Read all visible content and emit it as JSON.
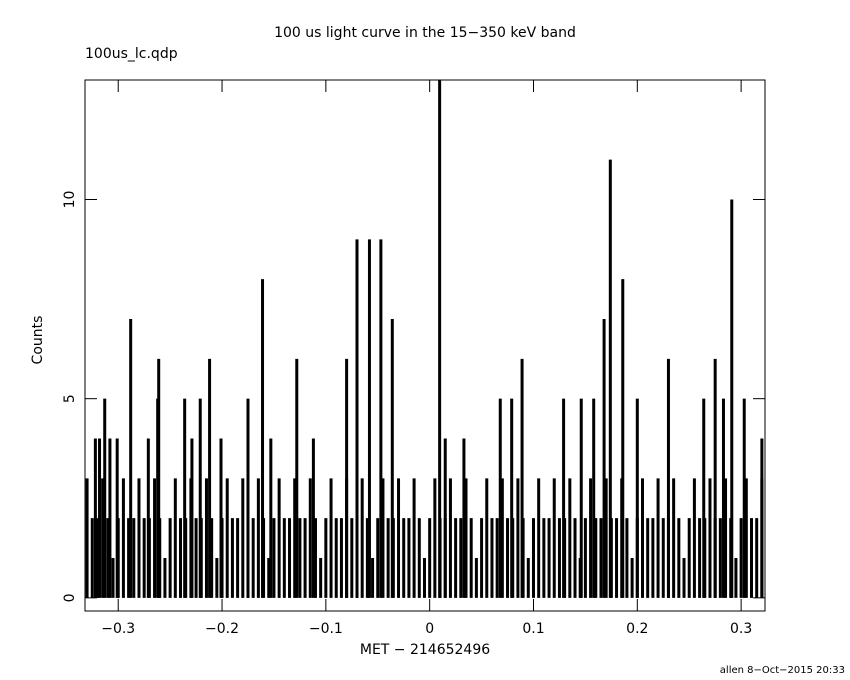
{
  "chart_data": {
    "type": "spikes",
    "title": "100 us light curve in the 15−350 keV band",
    "subtitle": "100us_lc.qdp",
    "xlabel": "MET − 214652496",
    "ylabel": "Counts",
    "footer": "allen  8−Oct−2015 20:33",
    "color": "#000000",
    "x": [
      -0.33,
      -0.325,
      -0.32,
      -0.315,
      -0.31,
      -0.305,
      -0.3,
      -0.295,
      -0.29,
      -0.285,
      -0.28,
      -0.275,
      -0.27,
      -0.265,
      -0.26,
      -0.255,
      -0.25,
      -0.245,
      -0.24,
      -0.235,
      -0.23,
      -0.225,
      -0.22,
      -0.215,
      -0.21,
      -0.205,
      -0.2,
      -0.195,
      -0.19,
      -0.185,
      -0.18,
      -0.175,
      -0.17,
      -0.165,
      -0.16,
      -0.155,
      -0.15,
      -0.145,
      -0.14,
      -0.135,
      -0.13,
      -0.125,
      -0.12,
      -0.115,
      -0.11,
      -0.105,
      -0.1,
      -0.095,
      -0.09,
      -0.085,
      -0.08,
      -0.075,
      -0.07,
      -0.065,
      -0.06,
      -0.055,
      -0.05,
      -0.045,
      -0.04,
      -0.035,
      -0.03,
      -0.025,
      -0.02,
      -0.015,
      -0.01,
      -0.005,
      0,
      0.005,
      0.01,
      0.015,
      0.02,
      0.025,
      0.03,
      0.035,
      0.04,
      0.045,
      0.05,
      0.055,
      0.06,
      0.065,
      0.07,
      0.075,
      0.08,
      0.085,
      0.09,
      0.095,
      0.1,
      0.105,
      0.11,
      0.115,
      0.12,
      0.125,
      0.13,
      0.135,
      0.14,
      0.145,
      0.15,
      0.155,
      0.16,
      0.165,
      0.17,
      0.175,
      0.18,
      0.185,
      0.19,
      0.195,
      0.2,
      0.205,
      0.21,
      0.215,
      0.22,
      0.225,
      0.23,
      0.235,
      0.24,
      0.245,
      0.25,
      0.255,
      0.26,
      0.265,
      0.27,
      0.275,
      0.28,
      0.285,
      0.29,
      0.295,
      0.3,
      0.305,
      0.31,
      0.315,
      0.32,
      -0.322,
      -0.318,
      -0.313,
      -0.308,
      -0.301,
      -0.288,
      -0.271,
      -0.262,
      -0.261,
      -0.236,
      -0.229,
      -0.221,
      -0.212,
      -0.201,
      -0.175,
      -0.161,
      -0.153,
      -0.128,
      -0.112,
      -0.08,
      -0.07,
      -0.058,
      -0.047,
      -0.036,
      0.0096,
      0.015,
      0.033,
      0.068,
      0.079,
      0.089,
      0.129,
      0.146,
      0.158,
      0.168,
      0.174,
      0.186,
      0.2,
      0.23,
      0.264,
      0.275,
      0.283,
      0.291,
      0.303,
      0.32
    ],
    "values": [
      3,
      2,
      2,
      3,
      2,
      1,
      2,
      3,
      2,
      2,
      3,
      2,
      2,
      3,
      2,
      1,
      2,
      3,
      2,
      2,
      3,
      2,
      2,
      3,
      2,
      1,
      2,
      3,
      2,
      2,
      3,
      2,
      2,
      3,
      2,
      1,
      2,
      3,
      2,
      2,
      3,
      2,
      2,
      3,
      2,
      1,
      2,
      3,
      2,
      2,
      3,
      2,
      2,
      3,
      2,
      1,
      2,
      3,
      2,
      2,
      3,
      2,
      2,
      3,
      2,
      1,
      2,
      3,
      2,
      2,
      3,
      2,
      2,
      3,
      2,
      1,
      2,
      3,
      2,
      2,
      3,
      2,
      2,
      3,
      2,
      1,
      2,
      3,
      2,
      2,
      3,
      2,
      2,
      3,
      2,
      1,
      2,
      3,
      2,
      2,
      3,
      2,
      2,
      3,
      2,
      1,
      2,
      3,
      2,
      2,
      3,
      2,
      2,
      3,
      2,
      1,
      2,
      3,
      2,
      2,
      3,
      2,
      2,
      3,
      2,
      1,
      2,
      3,
      2,
      2,
      3,
      4,
      4,
      5,
      4,
      4,
      7,
      4,
      5,
      6,
      5,
      4,
      5,
      6,
      4,
      5,
      8,
      4,
      6,
      4,
      6,
      9,
      9,
      9,
      7,
      13,
      4,
      4,
      5,
      5,
      6,
      5,
      5,
      5,
      7,
      11,
      8,
      5,
      6,
      5,
      6,
      5,
      10,
      5,
      4
    ],
    "xlim": [
      -0.332,
      0.323
    ],
    "ylim": [
      -0.33,
      13
    ],
    "xticks": [
      {
        "value": -0.3,
        "label": "−0.3"
      },
      {
        "value": -0.2,
        "label": "−0.2"
      },
      {
        "value": -0.1,
        "label": "−0.1"
      },
      0,
      0.1,
      0.2,
      0.3
    ],
    "yticks": [
      0,
      5,
      10
    ]
  }
}
